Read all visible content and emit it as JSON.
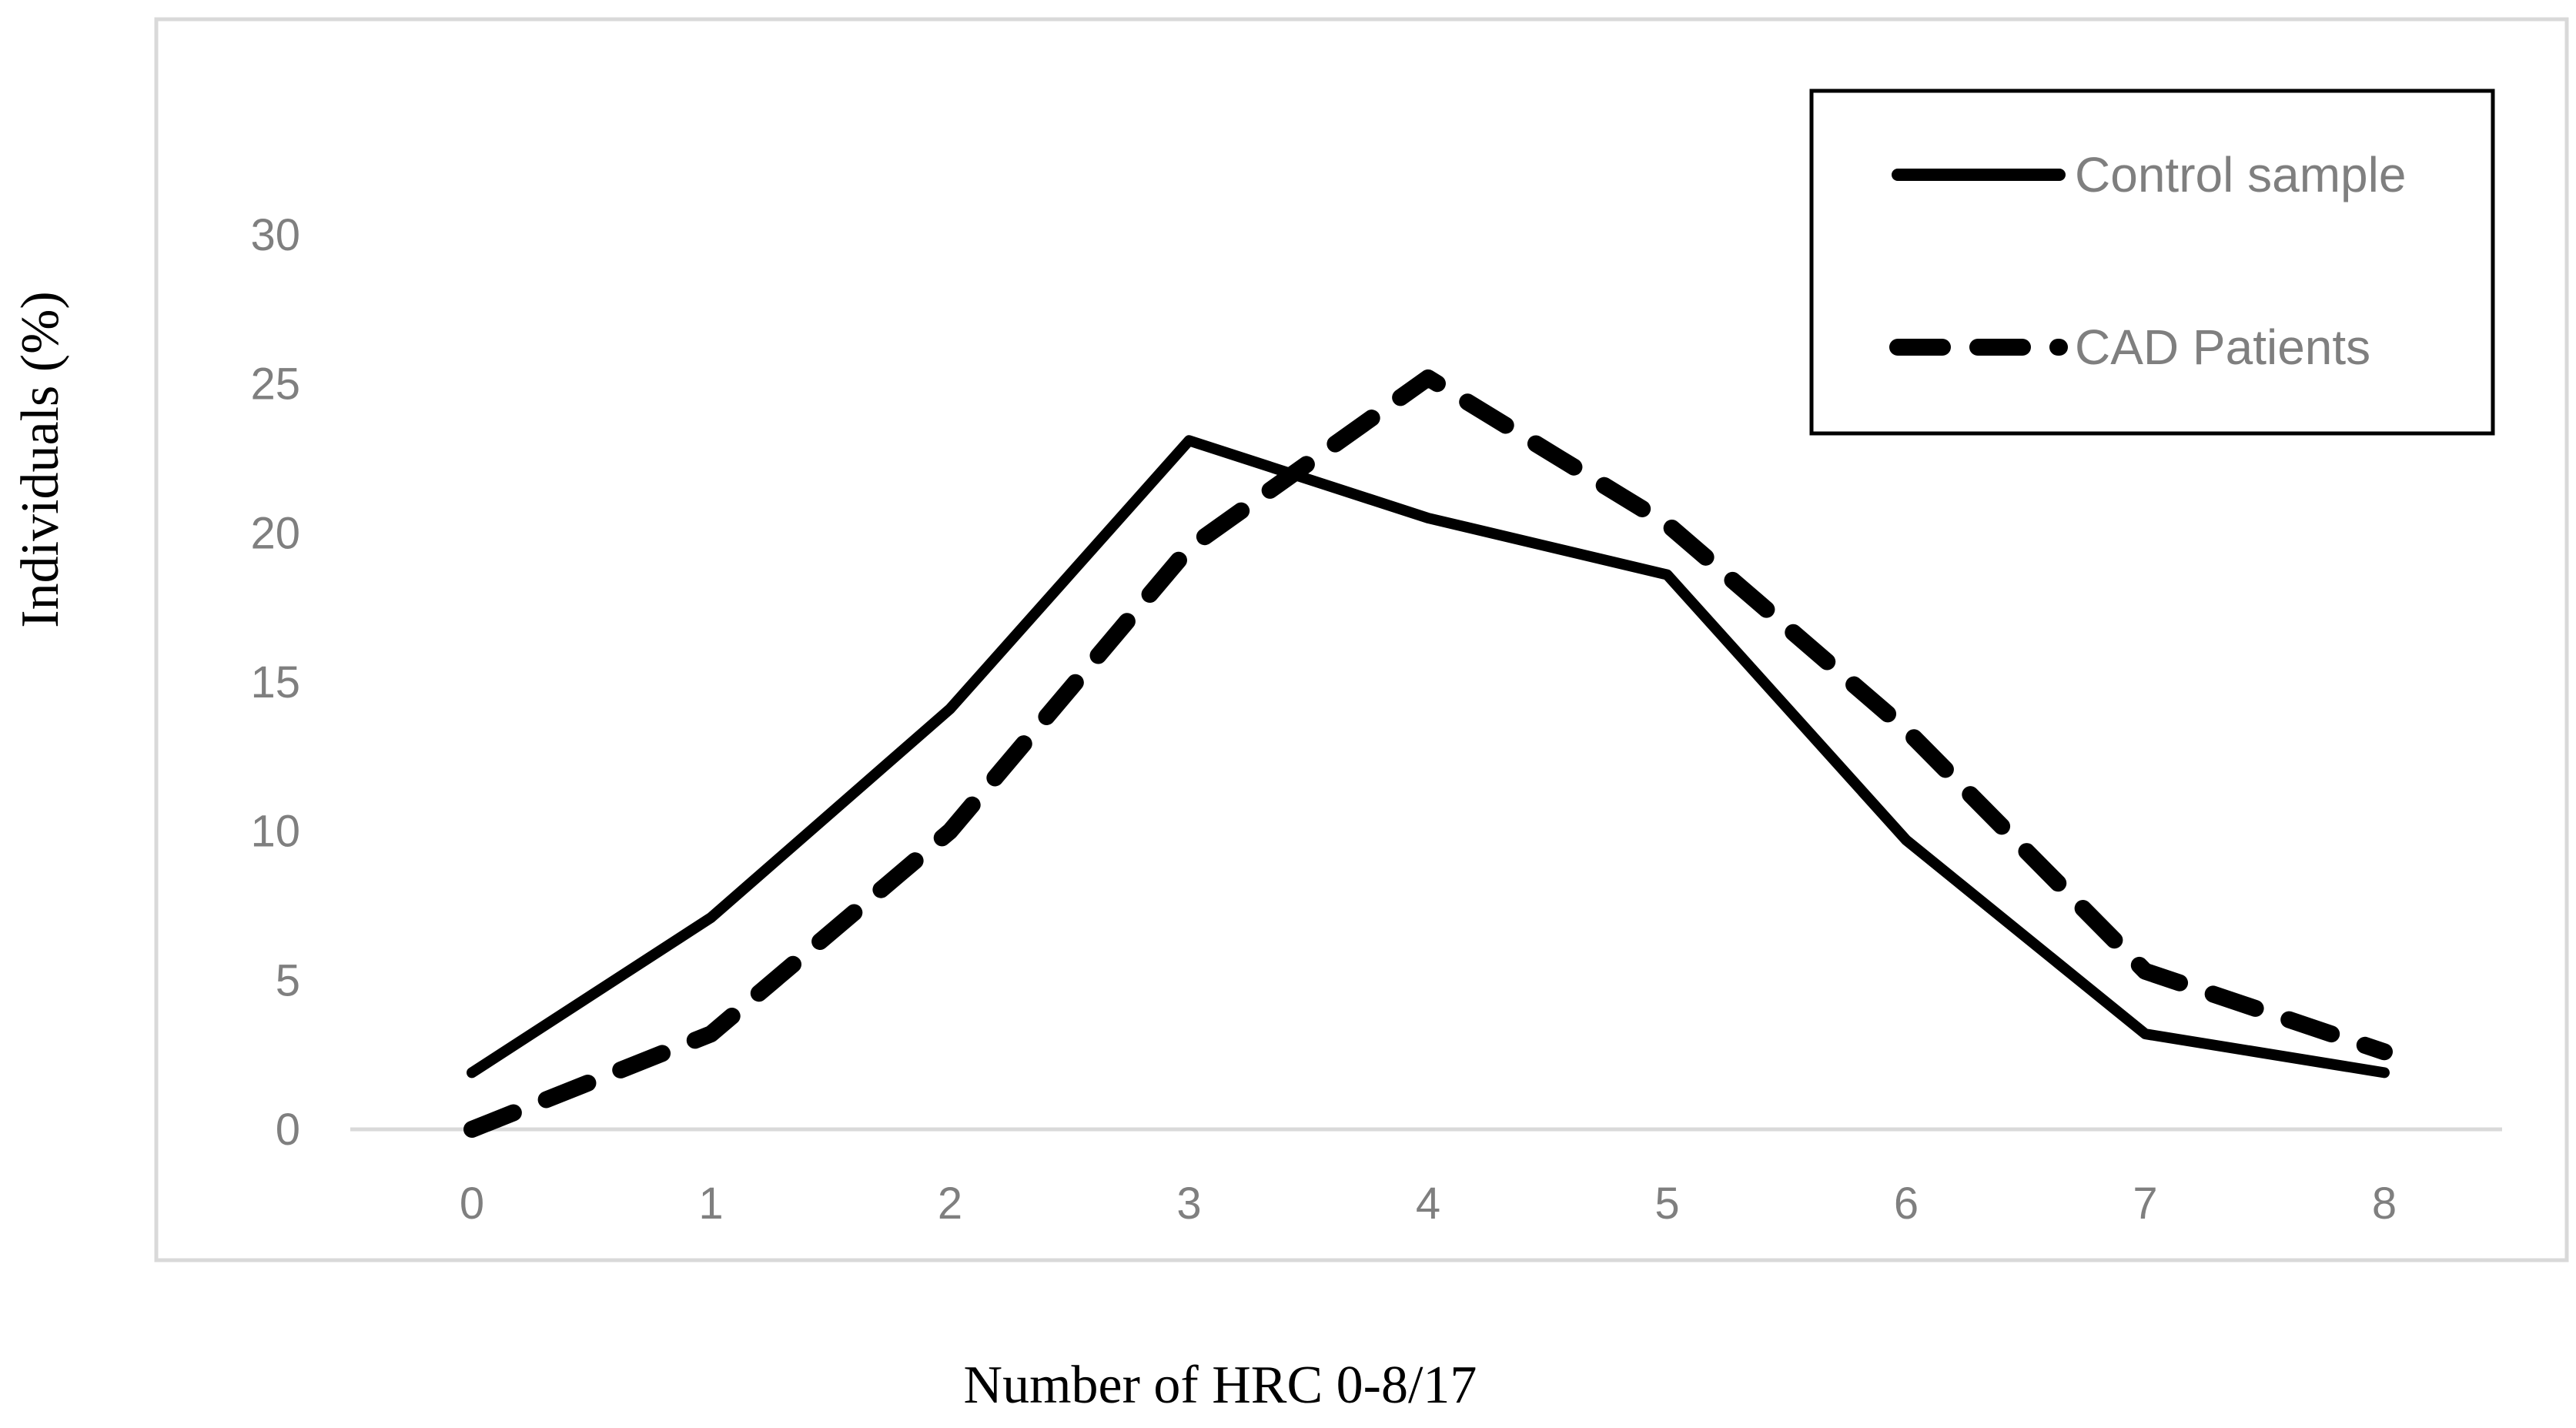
{
  "chart_data": {
    "type": "line",
    "title": "",
    "xlabel": "Number of HRC 0-8/17",
    "ylabel": "Individuals (%)",
    "categories": [
      "0",
      "1",
      "2",
      "3",
      "4",
      "5",
      "6",
      "7",
      "8"
    ],
    "ylim": [
      0,
      30
    ],
    "yticks": [
      0,
      5,
      10,
      15,
      20,
      25,
      30
    ],
    "grid": false,
    "legend_position": "top-right",
    "series": [
      {
        "name": "Control sample",
        "style": "solid",
        "color": "#000000",
        "values": [
          1.9,
          7.1,
          14.1,
          23.1,
          20.5,
          18.6,
          9.7,
          3.2,
          1.9
        ]
      },
      {
        "name": "CAD Patients",
        "style": "dashed",
        "color": "#000000",
        "values": [
          0,
          3.2,
          10.0,
          19.5,
          25.2,
          20.3,
          13.4,
          5.3,
          2.6
        ]
      }
    ]
  }
}
